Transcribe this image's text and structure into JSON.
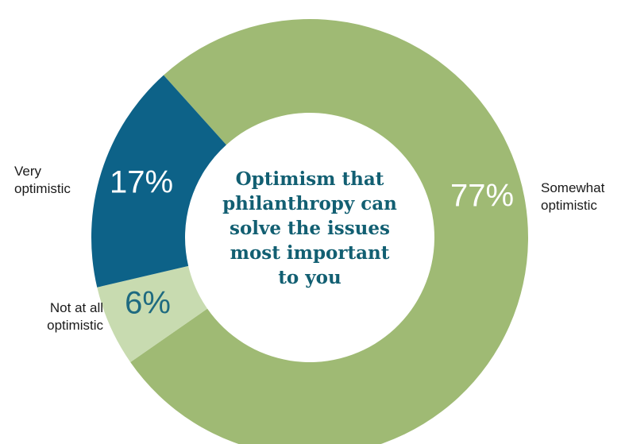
{
  "chart_data": {
    "type": "pie",
    "title": "Optimism that philanthropy can solve the issues most important to you",
    "title_lines": [
      "Optimism that",
      "philanthropy can",
      "solve the issues",
      "most important",
      "to you"
    ],
    "slices": [
      {
        "label": "Somewhat optimistic",
        "label_lines": [
          "Somewhat",
          "optimistic"
        ],
        "value": 77,
        "value_label": "77%",
        "color": "#9fba74",
        "value_label_color": "#ffffff"
      },
      {
        "label": "Not at all optimistic",
        "label_lines": [
          "Not at all",
          "optimistic"
        ],
        "value": 6,
        "value_label": "6%",
        "color": "#c8dbb0",
        "value_label_color": "#1e6a80"
      },
      {
        "label": "Very optimistic",
        "label_lines": [
          "Very",
          "optimistic"
        ],
        "value": 17,
        "value_label": "17%",
        "color": "#0d6288",
        "value_label_color": "#ffffff"
      }
    ],
    "legend": "none",
    "style": "donut"
  }
}
